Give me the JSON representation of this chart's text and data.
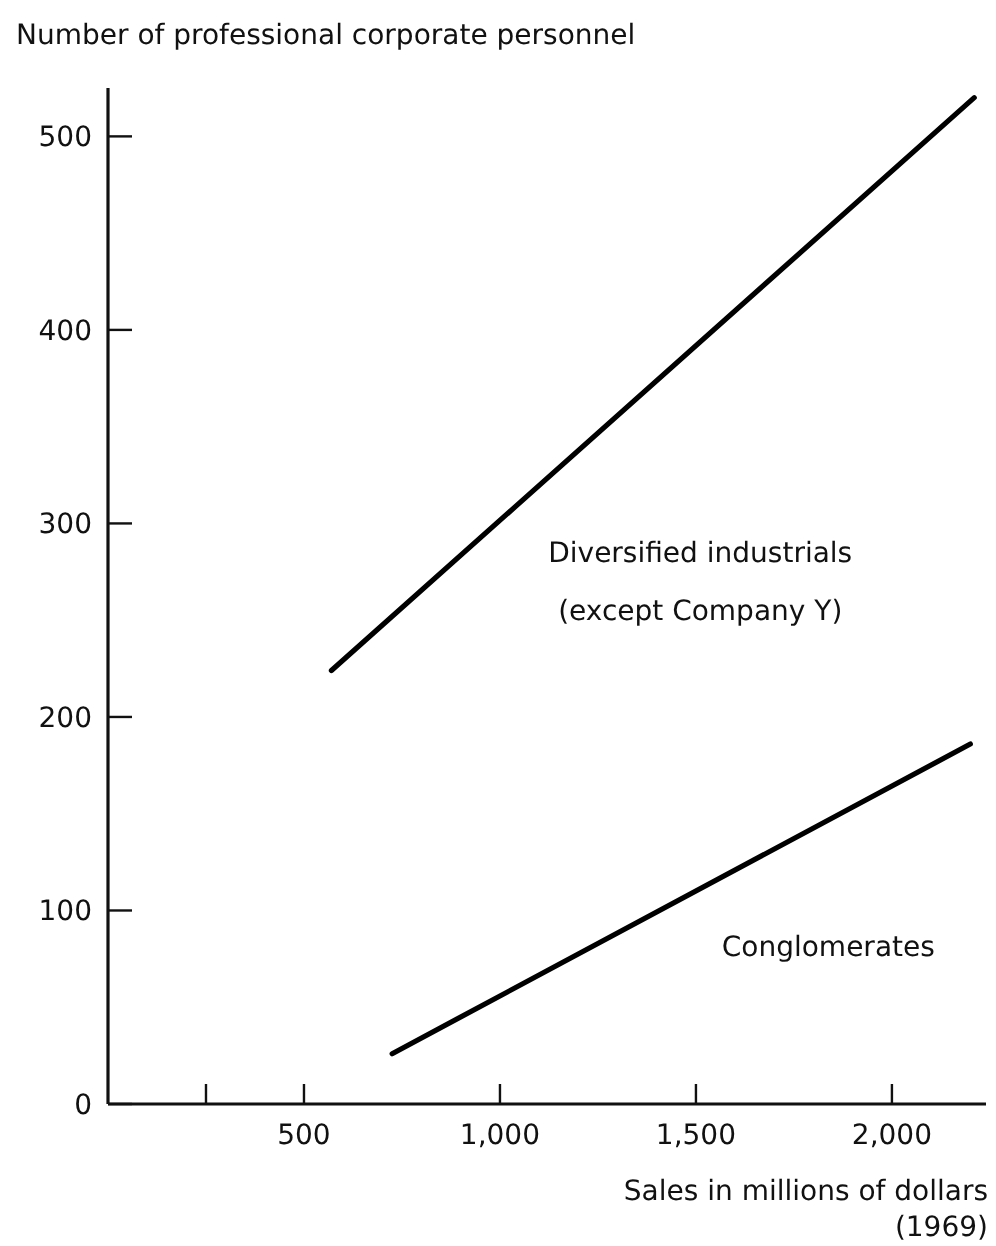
{
  "chart_data": {
    "type": "line",
    "ylabel": "Number of professional corporate personnel",
    "xlabel": "Sales in millions of dollars\n(1969)",
    "xlim": [
      0,
      2240
    ],
    "ylim": [
      0,
      525
    ],
    "xticks": [
      {
        "value": 250,
        "label": null
      },
      {
        "value": 500,
        "label": "500"
      },
      {
        "value": 1000,
        "label": "1,000"
      },
      {
        "value": 1500,
        "label": "1,500"
      },
      {
        "value": 2000,
        "label": "2,000"
      }
    ],
    "yticks": [
      0,
      100,
      200,
      300,
      400,
      500
    ],
    "grid": false,
    "marker": "none",
    "line_style": "solid",
    "series": [
      {
        "name": "Diversified industrials\n(except Company Y)",
        "color": "#000000",
        "x": [
          570,
          2210
        ],
        "values": [
          224,
          520
        ]
      },
      {
        "name": "Conglomerates",
        "color": "#000000",
        "x": [
          725,
          2200
        ],
        "values": [
          26,
          186
        ]
      }
    ]
  }
}
